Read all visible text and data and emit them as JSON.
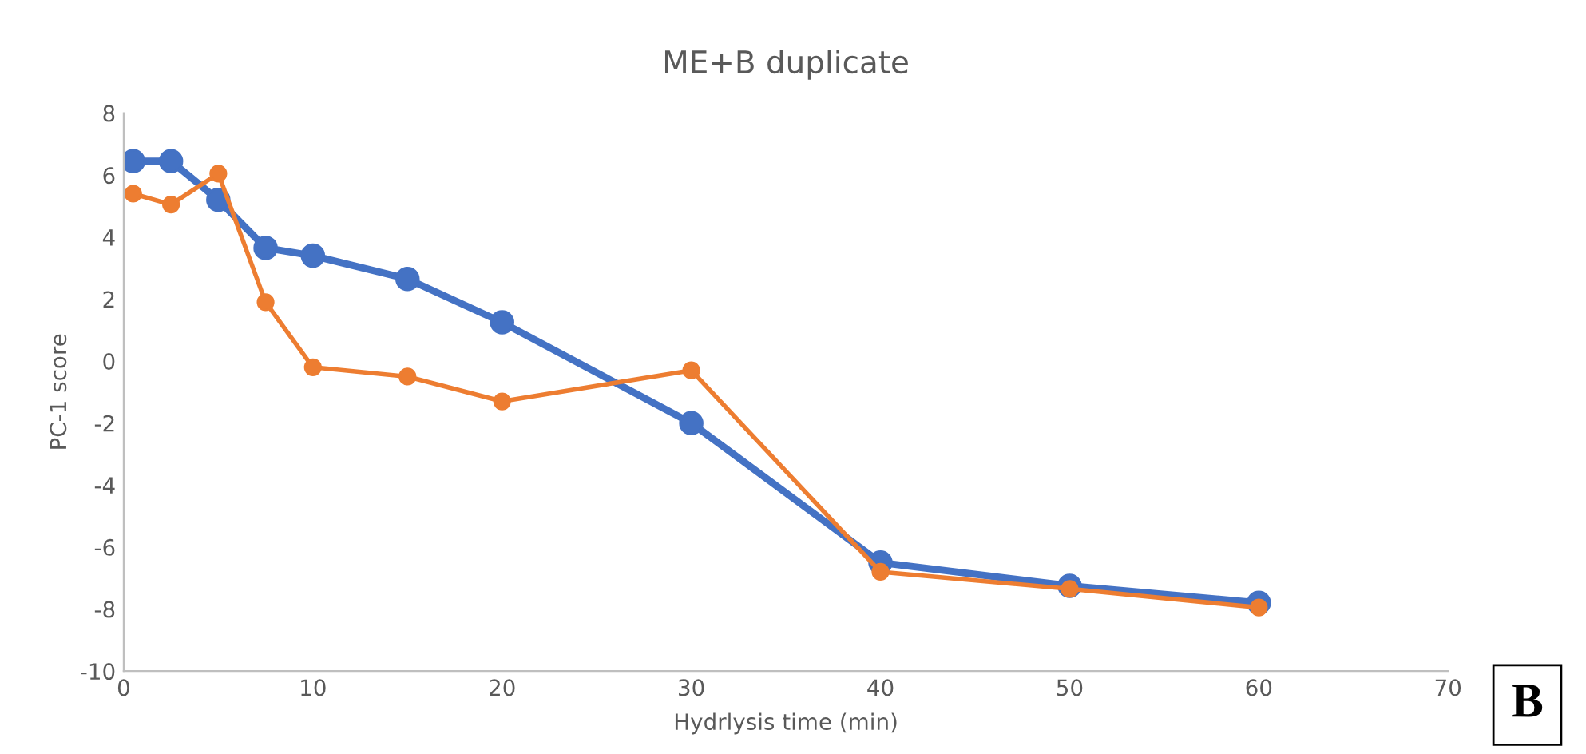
{
  "chart_data": {
    "type": "line",
    "title": "ME+B duplicate",
    "xlabel": "Hydrlysis time (min)",
    "ylabel": "PC-1 score",
    "x": [
      0.5,
      2.5,
      5,
      7.5,
      10,
      15,
      20,
      30,
      40,
      50,
      60
    ],
    "series": [
      {
        "color": "#4472c4",
        "values": [
          6.45,
          6.45,
          5.2,
          3.65,
          3.4,
          2.65,
          1.25,
          -2.0,
          -6.5,
          -7.25,
          -7.8
        ]
      },
      {
        "color": "#ed7d31",
        "values": [
          5.4,
          5.05,
          6.05,
          1.9,
          -0.2,
          -0.5,
          -1.3,
          -0.3,
          -6.8,
          -7.35,
          -7.95
        ]
      }
    ],
    "xlim": [
      0,
      70
    ],
    "xticks": [
      0,
      10,
      20,
      30,
      40,
      50,
      60,
      70
    ],
    "ylim": [
      -10,
      8
    ],
    "yticks": [
      -10,
      -8,
      -6,
      -4,
      -2,
      0,
      2,
      4,
      6,
      8
    ],
    "grid": false,
    "legend": false,
    "marker": "circle",
    "line_style": "solid",
    "annotations": [
      "B"
    ]
  }
}
